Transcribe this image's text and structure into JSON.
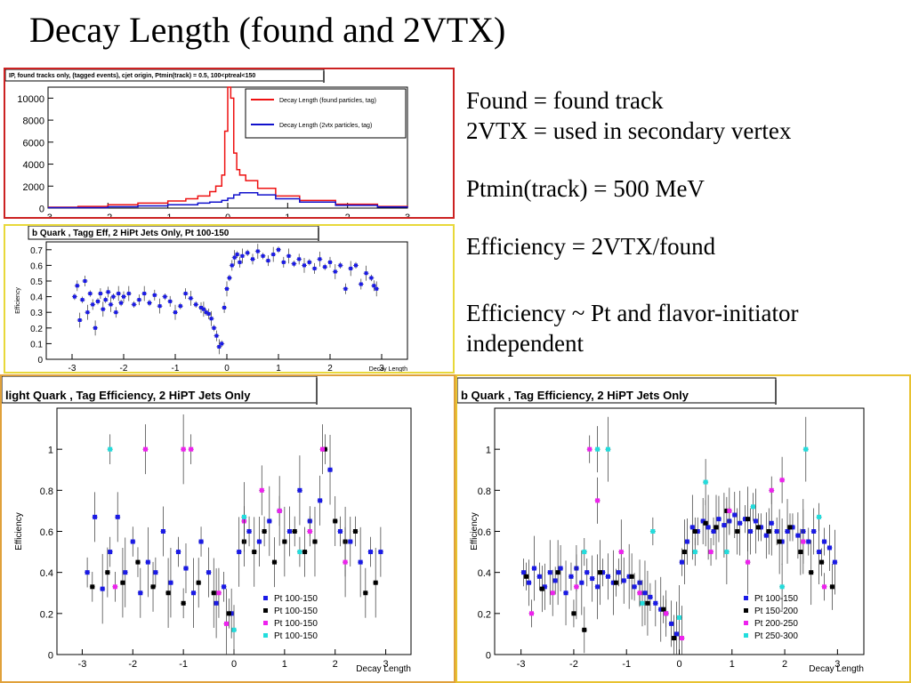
{
  "slide": {
    "title": "Decay Length (found and 2VTX)",
    "notes": [
      {
        "lines": [
          "Found = found track",
          "2VTX = used in secondary vertex"
        ]
      },
      {
        "lines": [
          "Ptmin(track) = 500 MeV"
        ]
      },
      {
        "lines": [
          "Efficiency = 2VTX/found"
        ]
      },
      {
        "lines": [
          "Efficiency ~ Pt and flavor-initiator",
          "independent"
        ]
      }
    ]
  },
  "colors": {
    "frame_red": "#cc2222",
    "frame_yellow": "#e8d83a",
    "frame_orange": "#e0a13a",
    "frame_gold": "#e8c230",
    "series_red": "#ee1111",
    "series_blue": "#1111cc",
    "blue": "#1a1ae6",
    "black": "#000000",
    "magenta": "#ee22ee",
    "cyan": "#22dddd"
  },
  "chart_data": [
    {
      "id": "ip-hist",
      "type": "line",
      "title": "IP, found tracks only, (tagged events), cjet origin, Ptmin(track) = 0.5, 100<ptreal<150",
      "xlabel": "",
      "ylabel": "",
      "xlim": [
        -3,
        3
      ],
      "ylim": [
        0,
        11000
      ],
      "xticks": [
        -3,
        -2,
        -1,
        0,
        1,
        2,
        3
      ],
      "yticks": [
        0,
        2000,
        4000,
        6000,
        8000,
        10000
      ],
      "legend": "top-right",
      "series": [
        {
          "name": "Decay Length (found particles, tag)",
          "color": "#ee1111",
          "x": [
            -3,
            -2.5,
            -2,
            -1.5,
            -1,
            -0.7,
            -0.5,
            -0.3,
            -0.2,
            -0.1,
            -0.05,
            0,
            0.05,
            0.1,
            0.15,
            0.2,
            0.3,
            0.5,
            0.8,
            1.2,
            1.8,
            2.5,
            3
          ],
          "y": [
            80,
            150,
            300,
            450,
            650,
            850,
            1100,
            1500,
            2000,
            3000,
            7000,
            11000,
            10000,
            5000,
            3500,
            3000,
            2500,
            1800,
            1100,
            700,
            350,
            150,
            60
          ]
        },
        {
          "name": "Decay Length (2vtx particles, tag)",
          "color": "#1111cc",
          "x": [
            -3,
            -2,
            -1.5,
            -1,
            -0.5,
            -0.3,
            -0.1,
            0,
            0.1,
            0.2,
            0.3,
            0.5,
            0.8,
            1.2,
            1.8,
            2.5,
            3
          ],
          "y": [
            40,
            120,
            200,
            300,
            450,
            550,
            700,
            900,
            1200,
            1400,
            1400,
            1200,
            850,
            550,
            250,
            100,
            40
          ]
        }
      ]
    },
    {
      "id": "b-eff-small",
      "type": "scatter",
      "title": "b Quark , Tagg Eff, 2 HiPt Jets Only, Pt 100-150",
      "xlabel": "Decay Length",
      "ylabel": "Efficiency",
      "xlim": [
        -3.5,
        3.5
      ],
      "ylim": [
        0,
        0.75
      ],
      "xticks": [
        -3,
        -2,
        -1,
        0,
        1,
        2,
        3
      ],
      "yticks": [
        0,
        0.1,
        0.2,
        0.3,
        0.4,
        0.5,
        0.6,
        0.7
      ],
      "series": [
        {
          "name": "",
          "color": "#1a1ae6",
          "x": [
            -2.95,
            -2.9,
            -2.85,
            -2.8,
            -2.75,
            -2.7,
            -2.65,
            -2.6,
            -2.55,
            -2.5,
            -2.45,
            -2.4,
            -2.35,
            -2.3,
            -2.25,
            -2.2,
            -2.15,
            -2.1,
            -2.05,
            -2.0,
            -1.9,
            -1.8,
            -1.7,
            -1.6,
            -1.5,
            -1.4,
            -1.3,
            -1.2,
            -1.1,
            -1.0,
            -0.9,
            -0.8,
            -0.7,
            -0.6,
            -0.5,
            -0.45,
            -0.4,
            -0.35,
            -0.3,
            -0.25,
            -0.2,
            -0.15,
            -0.1,
            -0.05,
            0.0,
            0.05,
            0.1,
            0.15,
            0.2,
            0.25,
            0.3,
            0.4,
            0.5,
            0.6,
            0.7,
            0.8,
            0.9,
            1.0,
            1.1,
            1.2,
            1.3,
            1.4,
            1.5,
            1.6,
            1.7,
            1.8,
            1.9,
            2.0,
            2.1,
            2.2,
            2.3,
            2.4,
            2.5,
            2.6,
            2.7,
            2.8,
            2.85,
            2.9
          ],
          "y": [
            0.4,
            0.47,
            0.25,
            0.38,
            0.5,
            0.3,
            0.42,
            0.35,
            0.2,
            0.37,
            0.42,
            0.32,
            0.38,
            0.43,
            0.35,
            0.4,
            0.3,
            0.42,
            0.36,
            0.4,
            0.42,
            0.35,
            0.38,
            0.42,
            0.36,
            0.41,
            0.34,
            0.4,
            0.37,
            0.3,
            0.34,
            0.42,
            0.39,
            0.35,
            0.33,
            0.32,
            0.3,
            0.29,
            0.26,
            0.2,
            0.15,
            0.08,
            0.1,
            0.33,
            0.45,
            0.52,
            0.6,
            0.65,
            0.67,
            0.62,
            0.66,
            0.68,
            0.64,
            0.69,
            0.66,
            0.63,
            0.67,
            0.7,
            0.62,
            0.66,
            0.61,
            0.64,
            0.6,
            0.62,
            0.58,
            0.64,
            0.59,
            0.62,
            0.56,
            0.6,
            0.45,
            0.58,
            0.6,
            0.48,
            0.55,
            0.52,
            0.47,
            0.45
          ]
        }
      ]
    },
    {
      "id": "light-eff",
      "type": "scatter",
      "title": "light Quark , Tag Efficiency, 2 HiPT Jets Only",
      "xlabel": "Decay Length",
      "ylabel": "Efficiency",
      "xlim": [
        -3.5,
        3.5
      ],
      "ylim": [
        0,
        1.2
      ],
      "xticks": [
        -3,
        -2,
        -1,
        0,
        1,
        2,
        3
      ],
      "yticks": [
        0,
        0.2,
        0.4,
        0.6,
        0.8,
        1
      ],
      "legend": "bottom-right",
      "series": [
        {
          "name": "Pt 100-150",
          "color": "#1a1ae6",
          "x": [
            -2.9,
            -2.75,
            -2.6,
            -2.45,
            -2.3,
            -2.15,
            -2.0,
            -1.85,
            -1.7,
            -1.55,
            -1.4,
            -1.25,
            -1.1,
            -0.95,
            -0.8,
            -0.65,
            -0.5,
            -0.35,
            -0.2,
            -0.05,
            0.1,
            0.3,
            0.5,
            0.7,
            0.9,
            1.1,
            1.3,
            1.5,
            1.7,
            1.9,
            2.1,
            2.3,
            2.5,
            2.7,
            2.9
          ],
          "y": [
            0.4,
            0.67,
            0.32,
            0.5,
            0.67,
            0.4,
            0.55,
            0.3,
            0.45,
            0.4,
            0.6,
            0.35,
            0.5,
            0.42,
            0.3,
            0.55,
            0.4,
            0.25,
            0.33,
            0.2,
            0.5,
            0.6,
            0.55,
            0.65,
            0.7,
            0.6,
            0.8,
            0.65,
            0.75,
            0.9,
            0.6,
            0.55,
            0.45,
            0.5,
            0.5
          ]
        },
        {
          "name": "Pt 100-150",
          "color": "#000000",
          "x": [
            -2.8,
            -2.5,
            -2.2,
            -1.9,
            -1.6,
            -1.3,
            -1.0,
            -0.7,
            -0.4,
            -0.1,
            0.2,
            0.4,
            0.6,
            0.8,
            1.0,
            1.2,
            1.4,
            1.6,
            1.8,
            2.0,
            2.2,
            2.4,
            2.6,
            2.8
          ],
          "y": [
            0.33,
            0.4,
            0.35,
            0.45,
            0.33,
            0.3,
            0.25,
            0.35,
            0.3,
            0.2,
            0.55,
            0.5,
            0.6,
            0.45,
            0.55,
            0.6,
            0.5,
            0.55,
            1.0,
            0.65,
            0.55,
            0.6,
            0.3,
            0.35
          ]
        },
        {
          "name": "Pt 100-150",
          "color": "#ee22ee",
          "x": [
            -2.35,
            -1.75,
            -1.0,
            -0.85,
            -0.3,
            -0.15,
            0.2,
            0.55,
            0.9,
            1.5,
            1.75,
            2.2
          ],
          "y": [
            0.33,
            1.0,
            1.0,
            1.0,
            0.3,
            0.15,
            0.65,
            0.8,
            0.7,
            0.6,
            1.0,
            0.45
          ]
        },
        {
          "name": "Pt 100-150",
          "color": "#22dddd",
          "x": [
            -2.45,
            0.0,
            0.2,
            1.3
          ],
          "y": [
            1.0,
            0.12,
            0.67,
            0.5
          ]
        }
      ]
    },
    {
      "id": "b-eff",
      "type": "scatter",
      "title": "b Quark , Tag Efficiency, 2 HiPT Jets Only",
      "xlabel": "Decay Length",
      "ylabel": "Efficiency",
      "xlim": [
        -3.5,
        3.5
      ],
      "ylim": [
        0,
        1.2
      ],
      "xticks": [
        -3,
        -2,
        -1,
        0,
        1,
        2,
        3
      ],
      "yticks": [
        0,
        0.2,
        0.4,
        0.6,
        0.8,
        1
      ],
      "legend": "bottom-right",
      "series": [
        {
          "name": "Pt 100-150",
          "color": "#1a1ae6",
          "x": [
            -2.95,
            -2.85,
            -2.75,
            -2.65,
            -2.55,
            -2.45,
            -2.35,
            -2.25,
            -2.15,
            -2.05,
            -1.95,
            -1.85,
            -1.75,
            -1.65,
            -1.55,
            -1.45,
            -1.35,
            -1.25,
            -1.15,
            -1.05,
            -0.95,
            -0.85,
            -0.75,
            -0.65,
            -0.55,
            -0.45,
            -0.35,
            -0.25,
            -0.15,
            -0.05,
            0.05,
            0.15,
            0.25,
            0.35,
            0.45,
            0.55,
            0.65,
            0.75,
            0.85,
            0.95,
            1.05,
            1.15,
            1.25,
            1.35,
            1.45,
            1.55,
            1.65,
            1.75,
            1.85,
            1.95,
            2.05,
            2.15,
            2.25,
            2.35,
            2.45,
            2.55,
            2.65,
            2.75,
            2.85,
            2.95
          ],
          "y": [
            0.4,
            0.35,
            0.42,
            0.38,
            0.33,
            0.4,
            0.36,
            0.42,
            0.3,
            0.38,
            0.42,
            0.35,
            0.4,
            0.37,
            0.33,
            0.4,
            0.38,
            0.35,
            0.4,
            0.36,
            0.38,
            0.33,
            0.35,
            0.3,
            0.28,
            0.25,
            0.22,
            0.2,
            0.15,
            0.1,
            0.45,
            0.55,
            0.62,
            0.6,
            0.65,
            0.62,
            0.6,
            0.66,
            0.63,
            0.65,
            0.68,
            0.64,
            0.66,
            0.6,
            0.65,
            0.62,
            0.58,
            0.64,
            0.6,
            0.55,
            0.6,
            0.62,
            0.58,
            0.6,
            0.55,
            0.6,
            0.5,
            0.55,
            0.52,
            0.45
          ]
        },
        {
          "name": "Pt 150-200",
          "color": "#000000",
          "x": [
            -2.9,
            -2.6,
            -2.3,
            -2.0,
            -1.8,
            -1.5,
            -1.2,
            -0.9,
            -0.6,
            -0.3,
            -0.1,
            0.1,
            0.3,
            0.5,
            0.7,
            0.9,
            1.1,
            1.3,
            1.5,
            1.7,
            1.9,
            2.1,
            2.3,
            2.5,
            2.7,
            2.9
          ],
          "y": [
            0.38,
            0.32,
            0.4,
            0.2,
            0.12,
            0.4,
            0.35,
            0.38,
            0.25,
            0.22,
            0.08,
            0.5,
            0.6,
            0.64,
            0.62,
            0.7,
            0.6,
            0.66,
            0.62,
            0.6,
            0.55,
            0.62,
            0.5,
            0.4,
            0.45,
            0.33
          ]
        },
        {
          "name": "Pt 200-250",
          "color": "#ee22ee",
          "x": [
            -2.8,
            -2.4,
            -1.95,
            -1.7,
            -1.55,
            -1.1,
            -0.75,
            -0.25,
            0.05,
            0.6,
            0.95,
            1.3,
            1.75,
            1.95,
            2.35,
            2.75
          ],
          "y": [
            0.2,
            0.3,
            0.33,
            1.0,
            0.75,
            0.5,
            0.3,
            0.2,
            0.08,
            0.5,
            0.7,
            0.45,
            0.8,
            0.85,
            0.55,
            0.33
          ]
        },
        {
          "name": "Pt 250-300",
          "color": "#22dddd",
          "x": [
            -1.8,
            -1.55,
            -1.35,
            -0.5,
            -0.7,
            0.0,
            0.3,
            0.5,
            0.9,
            1.4,
            1.95,
            2.4,
            2.65
          ],
          "y": [
            0.5,
            1.0,
            1.0,
            0.6,
            0.25,
            0.18,
            0.5,
            0.84,
            0.5,
            0.72,
            0.33,
            1.0,
            0.67
          ]
        }
      ]
    }
  ]
}
